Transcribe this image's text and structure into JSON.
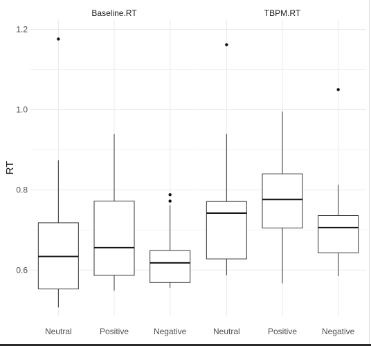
{
  "chart_data": {
    "type": "boxplot",
    "ylabel": "RT",
    "xlabel": "",
    "ylim": [
      0.485,
      1.225
    ],
    "yticks": [
      0.6,
      0.8,
      1.0,
      1.2
    ],
    "ytick_labels": [
      "0.6",
      "0.8",
      "1.0",
      "1.2"
    ],
    "grid": true,
    "panels": [
      {
        "title": "Baseline.RT",
        "categories": [
          "Neutral",
          "Positive",
          "Negative"
        ],
        "boxes": [
          {
            "category": "Neutral",
            "whisker_low": 0.507,
            "q1": 0.553,
            "median": 0.634,
            "q3": 0.718,
            "whisker_high": 0.874,
            "outliers": [
              1.176
            ]
          },
          {
            "category": "Positive",
            "whisker_low": 0.549,
            "q1": 0.587,
            "median": 0.656,
            "q3": 0.772,
            "whisker_high": 0.939,
            "outliers": []
          },
          {
            "category": "Negative",
            "whisker_low": 0.556,
            "q1": 0.569,
            "median": 0.618,
            "q3": 0.649,
            "whisker_high": 0.762,
            "outliers": [
              0.772,
              0.788
            ]
          }
        ]
      },
      {
        "title": "TBPM.RT",
        "categories": [
          "Neutral",
          "Positive",
          "Negative"
        ],
        "boxes": [
          {
            "category": "Neutral",
            "whisker_low": 0.587,
            "q1": 0.628,
            "median": 0.742,
            "q3": 0.771,
            "whisker_high": 0.939,
            "outliers": [
              1.162
            ]
          },
          {
            "category": "Positive",
            "whisker_low": 0.567,
            "q1": 0.705,
            "median": 0.776,
            "q3": 0.84,
            "whisker_high": 0.995,
            "outliers": []
          },
          {
            "category": "Negative",
            "whisker_low": 0.585,
            "q1": 0.643,
            "median": 0.706,
            "q3": 0.736,
            "whisker_high": 0.813,
            "outliers": [
              1.05
            ]
          }
        ]
      }
    ]
  },
  "colors": {
    "background": "#ffffff",
    "grid": "#ebebeb",
    "box_stroke": "#333333",
    "text": "#4d4d4d",
    "title_text": "#1a1a1a"
  }
}
